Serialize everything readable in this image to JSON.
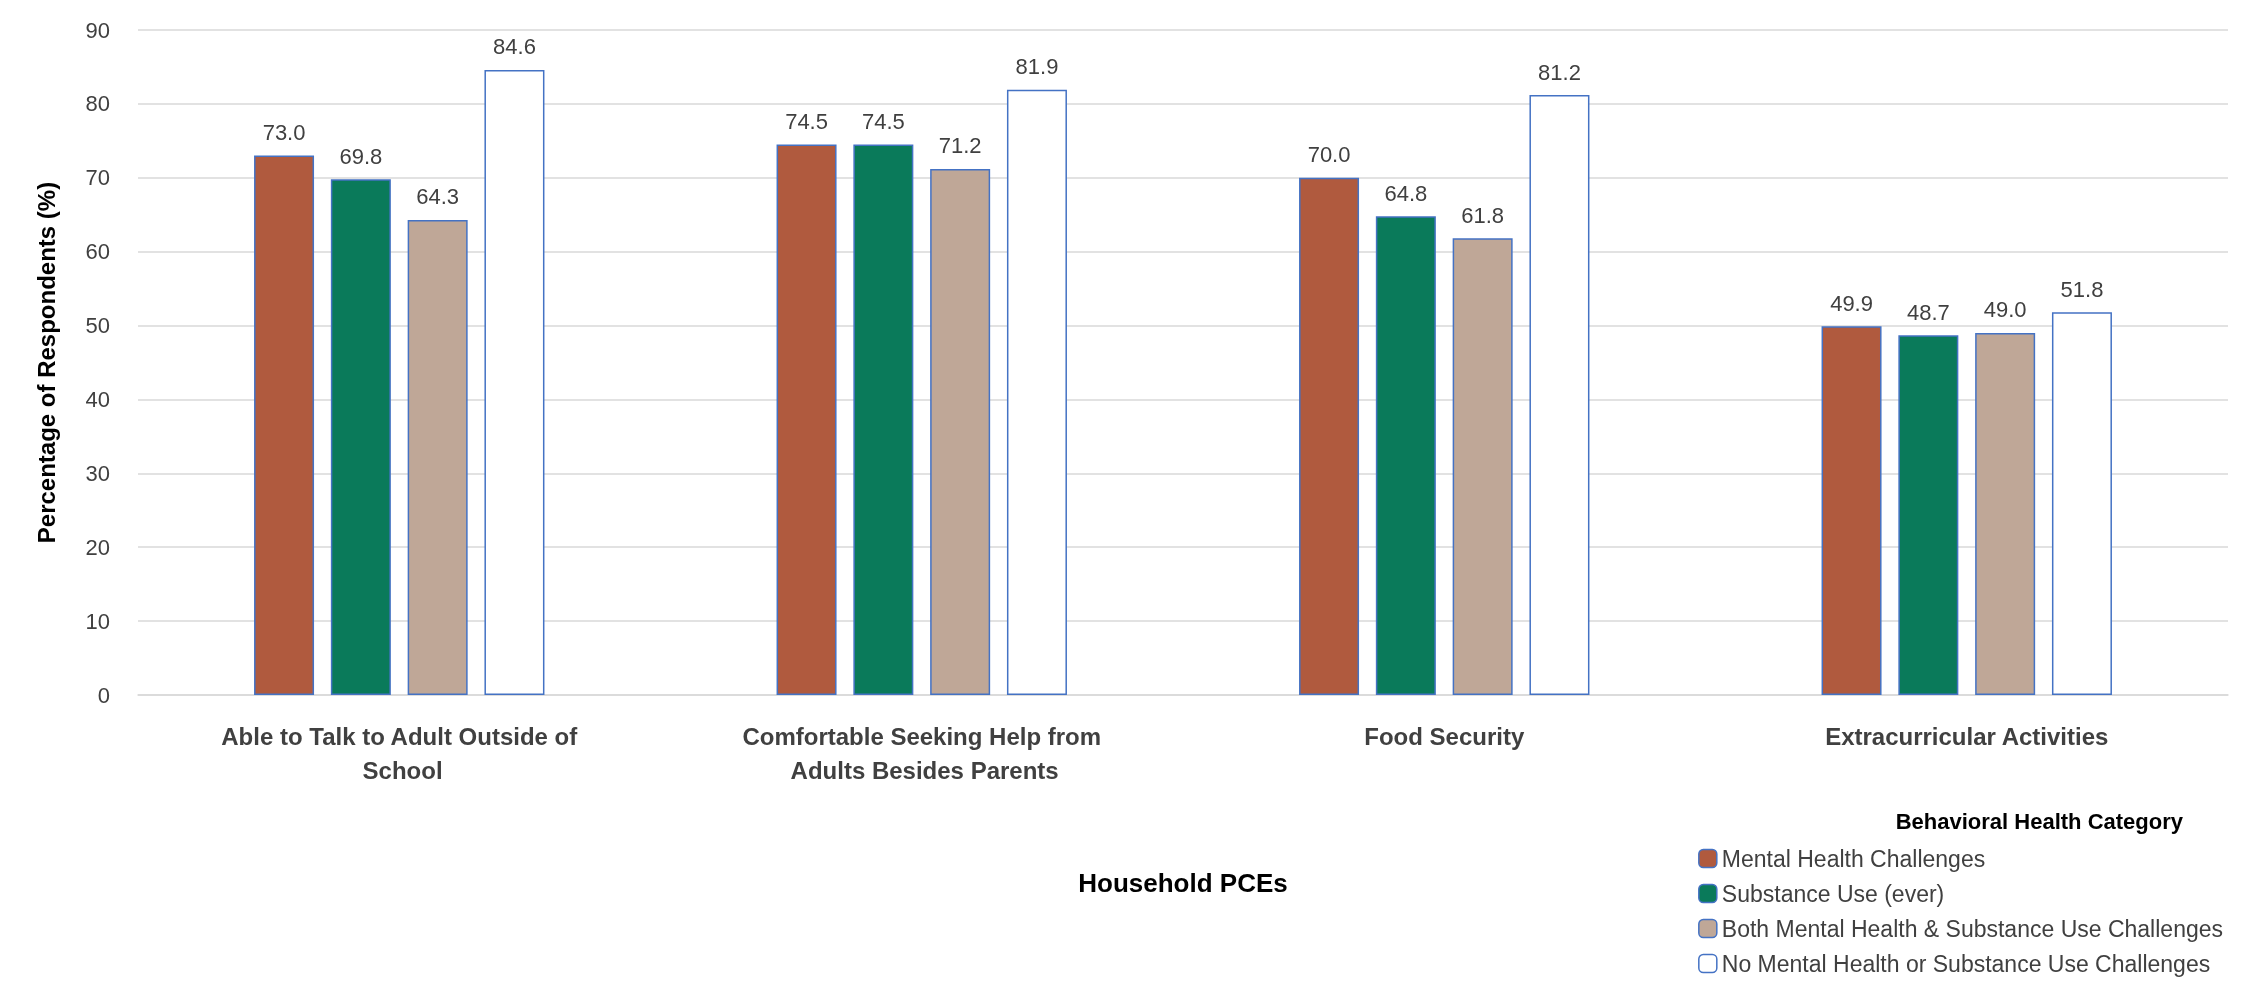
{
  "chart_data": {
    "type": "bar",
    "xlabel": "Household PCEs",
    "ylabel": "Percentage of Respondents (%)",
    "legend_title": "Behavioral Health Category",
    "categories": [
      "Able to Talk to Adult Outside of School",
      "Comfortable Seeking Help from Adults Besides Parents",
      "Food Security",
      "Extracurricular Activities"
    ],
    "series": [
      {
        "name": "Mental Health Challenges",
        "color": "#b05a3e",
        "values": [
          73.0,
          74.5,
          70.0,
          49.9
        ],
        "value_labels": [
          "73.0",
          "74.5",
          "70.0",
          "49.9"
        ]
      },
      {
        "name": "Substance Use (ever)",
        "color": "#0a7a5a",
        "values": [
          69.8,
          74.5,
          64.8,
          48.7
        ],
        "value_labels": [
          "69.8",
          "74.5",
          "64.8",
          "48.7"
        ]
      },
      {
        "name": "Both Mental Health & Substance Use Challenges",
        "color": "#bfa797",
        "values": [
          64.3,
          71.2,
          61.8,
          49.0
        ],
        "value_labels": [
          "64.3",
          "71.2",
          "61.8",
          "49.0"
        ]
      },
      {
        "name": "No Mental Health or Substance Use Challenges",
        "color": "#ffffff",
        "values": [
          84.6,
          81.9,
          81.2,
          51.8
        ],
        "value_labels": [
          "84.6",
          "81.9",
          "81.2",
          "51.8"
        ]
      }
    ],
    "ylim": [
      0,
      90
    ],
    "yticks": [
      0,
      10,
      20,
      30,
      40,
      50,
      60,
      70,
      80,
      90
    ],
    "grid": "y",
    "legend": "bottom right"
  }
}
